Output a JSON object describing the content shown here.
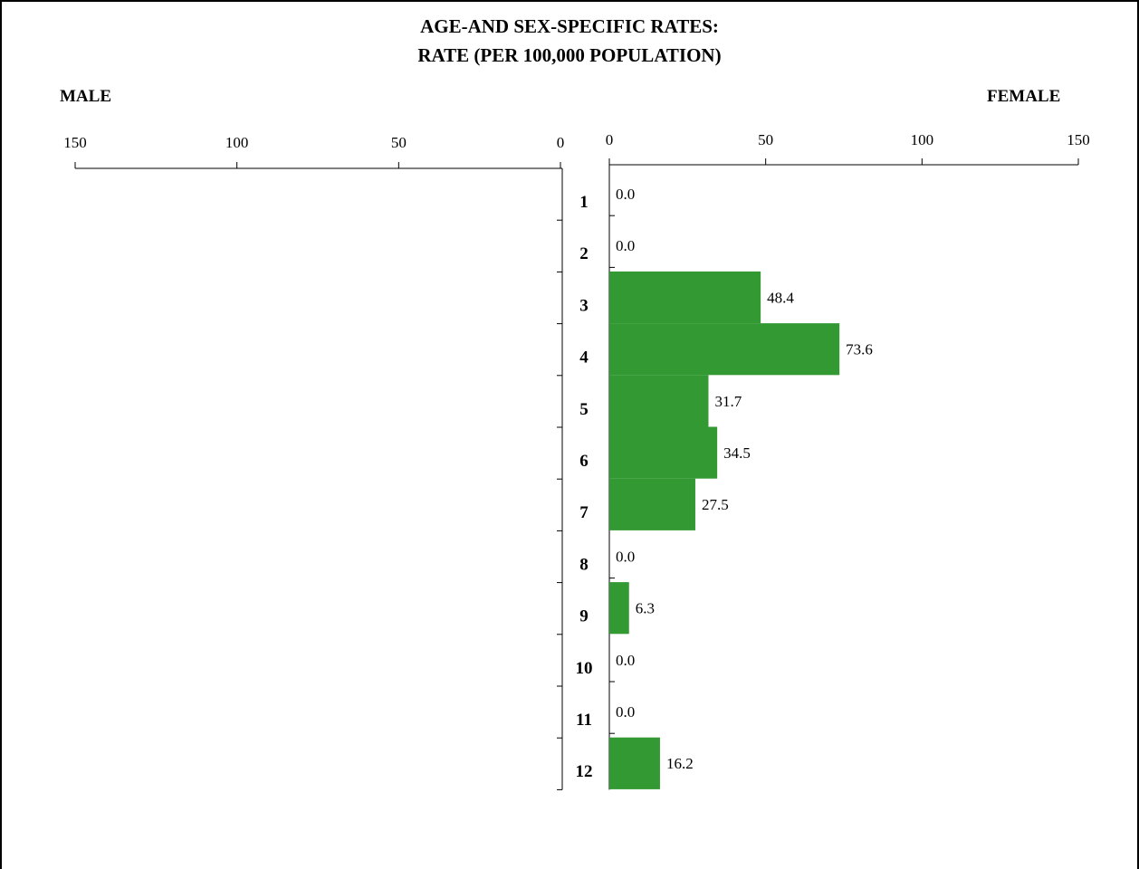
{
  "chart_data": {
    "type": "bar",
    "title": [
      "AGE-AND SEX-SPECIFIC RATES:",
      "RATE (PER 100,000 POPULATION)"
    ],
    "left_label": "MALE",
    "right_label": "FEMALE",
    "categories": [
      "1",
      "2",
      "3",
      "4",
      "5",
      "6",
      "7",
      "8",
      "9",
      "10",
      "11",
      "12"
    ],
    "male_axis": {
      "ticks": [
        150,
        100,
        50,
        0
      ],
      "xlim": [
        0,
        150
      ]
    },
    "female_axis": {
      "ticks": [
        0,
        50,
        100,
        150
      ],
      "xlim": [
        0,
        150
      ]
    },
    "series": [
      {
        "name": "FEMALE",
        "values": [
          0.0,
          0.0,
          48.4,
          73.6,
          31.7,
          34.5,
          27.5,
          0.0,
          6.3,
          0.0,
          0.0,
          16.2
        ]
      }
    ],
    "value_labels": [
      "0.0",
      "0.0",
      "48.4",
      "73.6",
      "31.7",
      "34.5",
      "27.5",
      "0.0",
      "6.3",
      "0.0",
      "0.0",
      "16.2"
    ],
    "bar_color": "#339933"
  }
}
